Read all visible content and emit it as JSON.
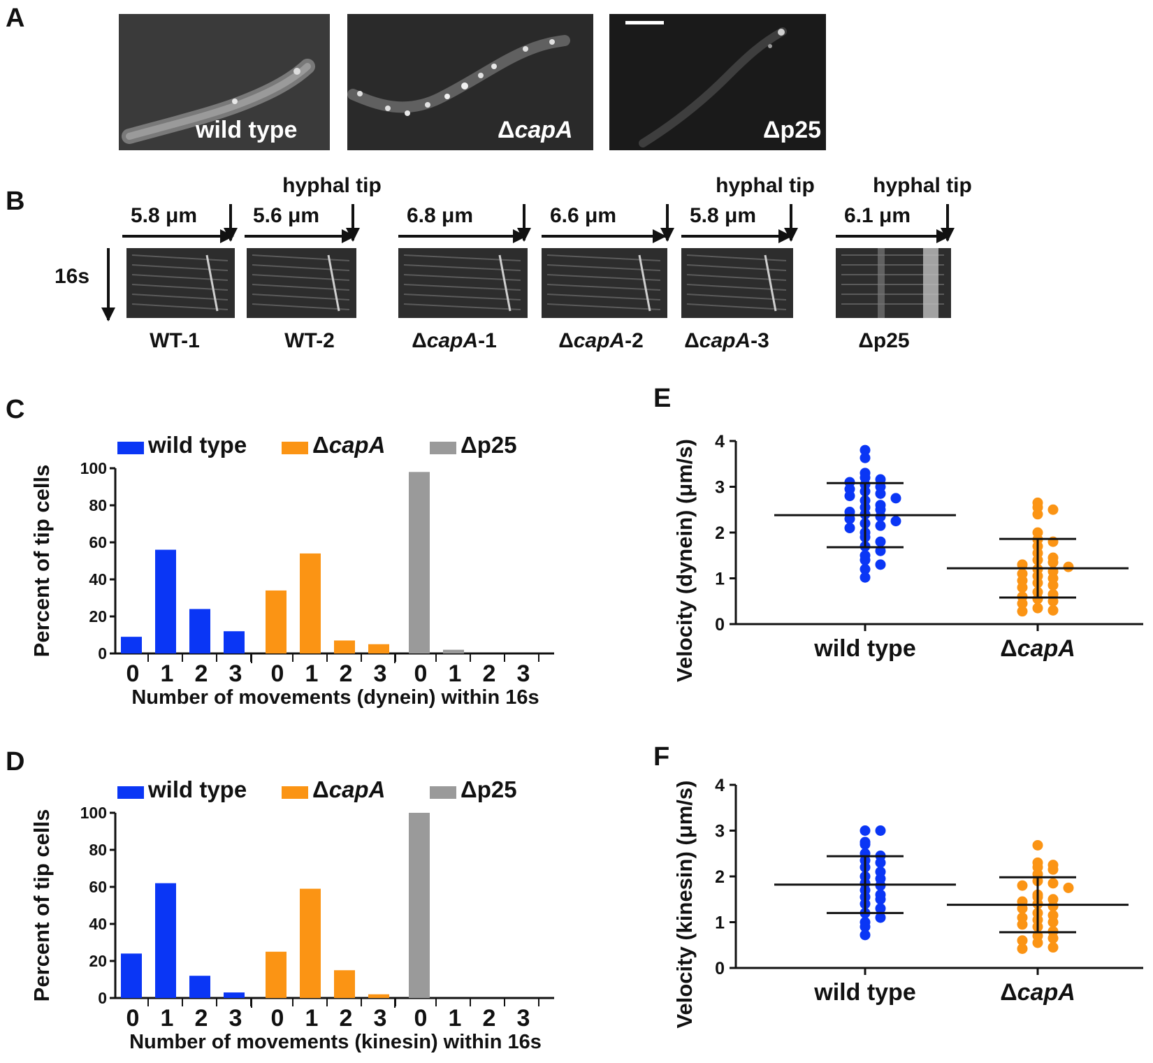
{
  "panels": {
    "A": "A",
    "B": "B",
    "C": "C",
    "D": "D",
    "E": "E",
    "F": "F"
  },
  "panel_a": {
    "images": [
      {
        "label": "wild type",
        "italic": false,
        "prefix": ""
      },
      {
        "label": "capA",
        "italic": true,
        "prefix": "Δ"
      },
      {
        "label": "p25",
        "italic": false,
        "prefix": "Δ"
      }
    ]
  },
  "panel_b": {
    "time_label": "16s",
    "kymographs": [
      {
        "dist": "5.8 μm",
        "label_prefix": "WT-1",
        "label_italic": "",
        "label_suffix": "",
        "top": ""
      },
      {
        "dist": "5.6 μm",
        "label_prefix": "WT-2",
        "label_italic": "",
        "label_suffix": "",
        "top": "hyphal tip"
      },
      {
        "dist": "6.8 μm",
        "label_prefix": "Δ",
        "label_italic": "capA",
        "label_suffix": "-1",
        "top": ""
      },
      {
        "dist": "6.6  μm",
        "label_prefix": "Δ",
        "label_italic": "capA",
        "label_suffix": "-2",
        "top": ""
      },
      {
        "dist": "5.8 μm",
        "label_prefix": "Δ",
        "label_italic": "capA",
        "label_suffix": "-3",
        "top": "hyphal tip"
      },
      {
        "dist": "6.1 μm",
        "label_prefix": "Δp25",
        "label_italic": "",
        "label_suffix": "",
        "top": "hyphal tip"
      }
    ]
  },
  "legend": {
    "wt": "wild type",
    "capa_prefix": "Δ",
    "capa": "capA",
    "p25": "Δp25"
  },
  "colors": {
    "wt": "#0a36f5",
    "capa": "#fb9414",
    "p25": "#9a9a9a",
    "axis": "#111111"
  },
  "chart_data": [
    {
      "id": "C",
      "type": "bar",
      "title": "",
      "ylabel": "Percent of tip cells",
      "xlabel": "Number of movements (dynein) within 16s",
      "ylim": [
        0,
        100
      ],
      "yticks": [
        0,
        20,
        40,
        60,
        80,
        100
      ],
      "categories": [
        "0",
        "1",
        "2",
        "3"
      ],
      "series": [
        {
          "name": "wild type",
          "values": [
            9,
            56,
            24,
            12
          ]
        },
        {
          "name": "ΔcapA",
          "values": [
            34,
            54,
            7,
            5
          ]
        },
        {
          "name": "Δp25",
          "values": [
            98,
            2,
            0,
            0
          ]
        }
      ]
    },
    {
      "id": "D",
      "type": "bar",
      "title": "",
      "ylabel": "Percent of tip cells",
      "xlabel": "Number of movements (kinesin) within 16s",
      "ylim": [
        0,
        100
      ],
      "yticks": [
        0,
        20,
        40,
        60,
        80,
        100
      ],
      "categories": [
        "0",
        "1",
        "2",
        "3"
      ],
      "series": [
        {
          "name": "wild type",
          "values": [
            24,
            62,
            12,
            3
          ]
        },
        {
          "name": "ΔcapA",
          "values": [
            25,
            59,
            15,
            2
          ]
        },
        {
          "name": "Δp25",
          "values": [
            100,
            0,
            0,
            0
          ]
        }
      ]
    },
    {
      "id": "E",
      "type": "scatter",
      "ylabel": "Velocity (dynein) (μm/s)",
      "ylim": [
        0,
        4
      ],
      "yticks": [
        0,
        1,
        2,
        3,
        4
      ],
      "groups": [
        {
          "name": "wild type",
          "mean": 2.38,
          "sd": 0.7,
          "points": [
            3.8,
            3.63,
            3.3,
            3.2,
            3.16,
            3.1,
            3.05,
            3.0,
            2.95,
            2.9,
            2.85,
            2.8,
            2.75,
            2.7,
            2.6,
            2.55,
            2.5,
            2.45,
            2.4,
            2.35,
            2.3,
            2.25,
            2.2,
            2.15,
            2.1,
            2.0,
            1.9,
            1.8,
            1.7,
            1.6,
            1.5,
            1.4,
            1.3,
            1.2,
            1.02
          ]
        },
        {
          "name": "ΔcapA",
          "mean": 1.22,
          "sd": 0.64,
          "points": [
            2.65,
            2.55,
            2.5,
            2.4,
            2.0,
            1.85,
            1.8,
            1.7,
            1.55,
            1.45,
            1.4,
            1.35,
            1.3,
            1.25,
            1.2,
            1.15,
            1.1,
            1.05,
            1.0,
            0.95,
            0.9,
            0.85,
            0.8,
            0.7,
            0.65,
            0.6,
            0.55,
            0.5,
            0.45,
            0.35,
            0.3,
            0.28
          ]
        }
      ],
      "categories": [
        "wild type",
        "ΔcapA"
      ]
    },
    {
      "id": "F",
      "type": "scatter",
      "ylabel": "Velocity (kinesin) (μm/s)",
      "ylim": [
        0,
        4
      ],
      "yticks": [
        0,
        1,
        2,
        3,
        4
      ],
      "groups": [
        {
          "name": "wild type",
          "mean": 1.82,
          "sd": 0.62,
          "points": [
            3.0,
            3.0,
            2.75,
            2.7,
            2.5,
            2.45,
            2.35,
            2.3,
            2.2,
            2.1,
            2.0,
            1.95,
            1.85,
            1.8,
            1.7,
            1.6,
            1.55,
            1.5,
            1.4,
            1.3,
            1.2,
            1.1,
            1.0,
            0.9,
            0.72
          ]
        },
        {
          "name": "ΔcapA",
          "mean": 1.38,
          "sd": 0.6,
          "points": [
            2.68,
            2.3,
            2.25,
            2.2,
            2.15,
            2.05,
            1.9,
            1.85,
            1.8,
            1.75,
            1.6,
            1.55,
            1.5,
            1.45,
            1.4,
            1.35,
            1.3,
            1.2,
            1.15,
            1.1,
            1.05,
            1.0,
            0.95,
            0.9,
            0.8,
            0.7,
            0.65,
            0.6,
            0.55,
            0.45,
            0.42
          ]
        }
      ],
      "categories": [
        "wild type",
        "ΔcapA"
      ]
    }
  ]
}
